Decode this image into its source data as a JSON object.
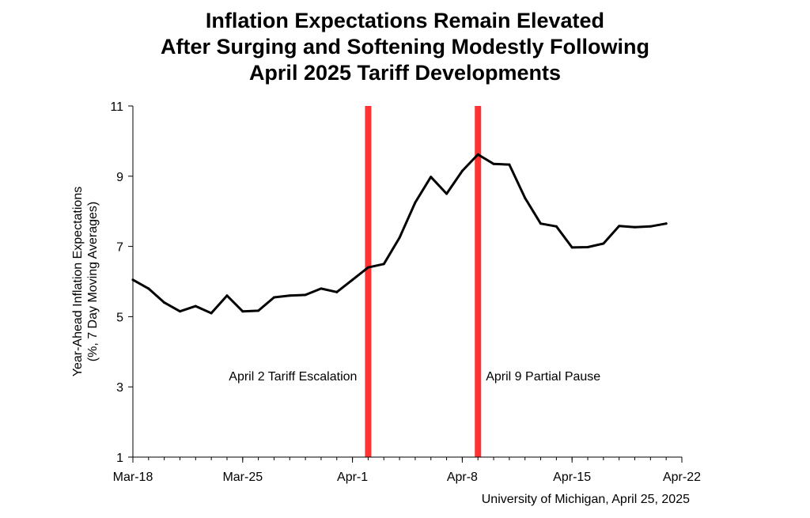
{
  "chart_data": {
    "type": "line",
    "title_lines": [
      "Inflation Expectations Remain Elevated",
      "After Surging and Softening Modestly Following",
      "April 2025 Tariff Developments"
    ],
    "ylabel_lines": [
      "Year-Ahead Inflation Expectations",
      "(%, 7 Day Moving Averages)"
    ],
    "xlabel": "",
    "xlim": [
      "2025-03-18",
      "2025-04-22"
    ],
    "ylim": [
      1,
      11
    ],
    "y_ticks": [
      1,
      3,
      5,
      7,
      9,
      11
    ],
    "x_ticks": [
      {
        "date": "2025-03-18",
        "label": "Mar-18"
      },
      {
        "date": "2025-03-25",
        "label": "Mar-25"
      },
      {
        "date": "2025-04-01",
        "label": "Apr-1"
      },
      {
        "date": "2025-04-08",
        "label": "Apr-8"
      },
      {
        "date": "2025-04-15",
        "label": "Apr-15"
      },
      {
        "date": "2025-04-22",
        "label": "Apr-22"
      }
    ],
    "grid": false,
    "line_color": "#000000",
    "series": [
      {
        "x": [
          "2025-03-18",
          "2025-03-19",
          "2025-03-20",
          "2025-03-21",
          "2025-03-22",
          "2025-03-23",
          "2025-03-24",
          "2025-03-25",
          "2025-03-26",
          "2025-03-27",
          "2025-03-28",
          "2025-03-29",
          "2025-03-30",
          "2025-03-31",
          "2025-04-01",
          "2025-04-02",
          "2025-04-03",
          "2025-04-04",
          "2025-04-05",
          "2025-04-06",
          "2025-04-07",
          "2025-04-08",
          "2025-04-09",
          "2025-04-10",
          "2025-04-11",
          "2025-04-12",
          "2025-04-13",
          "2025-04-14",
          "2025-04-15",
          "2025-04-16",
          "2025-04-17",
          "2025-04-18",
          "2025-04-19",
          "2025-04-20",
          "2025-04-21"
        ],
        "values": [
          6.05,
          5.8,
          5.4,
          5.15,
          5.3,
          5.1,
          5.6,
          5.15,
          5.17,
          5.55,
          5.6,
          5.62,
          5.8,
          5.7,
          6.05,
          6.4,
          6.5,
          7.25,
          8.25,
          8.98,
          8.5,
          9.15,
          9.62,
          9.35,
          9.33,
          8.38,
          7.65,
          7.57,
          6.97,
          6.98,
          7.08,
          7.58,
          7.55,
          7.57,
          7.65
        ]
      }
    ],
    "annotations": [
      {
        "date": "2025-04-02",
        "text": "April 2 Tariff Escalation",
        "color": "#ff3333"
      },
      {
        "date": "2025-04-09",
        "text": "April 9 Partial Pause",
        "color": "#ff3333"
      }
    ]
  },
  "footer": {
    "source": "University of Michigan, April 25, 2025"
  }
}
